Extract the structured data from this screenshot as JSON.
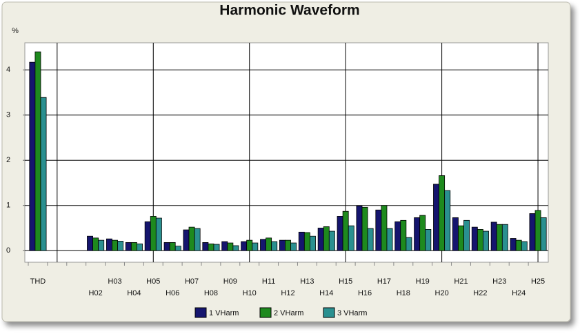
{
  "chart_data": {
    "type": "bar",
    "title": "Harmonic Waveform",
    "y_label": "%",
    "categories": [
      "THD",
      null,
      null,
      "H02",
      "H03",
      "H04",
      "H05",
      "H06",
      "H07",
      "H08",
      "H09",
      "H10",
      "H11",
      "H12",
      "H13",
      "H14",
      "H15",
      "H16",
      "H17",
      "H18",
      "H19",
      "H20",
      "H21",
      "H22",
      "H23",
      "H24",
      "H25"
    ],
    "series": [
      {
        "name": "1 VHarm",
        "color": "#15156e",
        "values": [
          4.17,
          null,
          null,
          0.32,
          0.26,
          0.18,
          0.64,
          0.18,
          0.46,
          0.18,
          0.2,
          0.2,
          0.25,
          0.23,
          0.41,
          0.5,
          0.76,
          0.99,
          0.9,
          0.64,
          0.73,
          1.47,
          0.73,
          0.52,
          0.63,
          0.27,
          0.82
        ]
      },
      {
        "name": "2 VHarm",
        "color": "#1e8a1e",
        "values": [
          4.4,
          null,
          null,
          0.28,
          0.23,
          0.18,
          0.76,
          0.18,
          0.52,
          0.15,
          0.17,
          0.23,
          0.28,
          0.23,
          0.4,
          0.53,
          0.87,
          0.96,
          1.0,
          0.67,
          0.78,
          1.66,
          0.55,
          0.47,
          0.58,
          0.23,
          0.89
        ]
      },
      {
        "name": "3 VHarm",
        "color": "#2a9090",
        "values": [
          3.39,
          null,
          null,
          0.23,
          0.21,
          0.15,
          0.72,
          0.1,
          0.49,
          0.14,
          0.11,
          0.17,
          0.2,
          0.17,
          0.32,
          0.43,
          0.55,
          0.49,
          0.49,
          0.29,
          0.47,
          1.33,
          0.67,
          0.43,
          0.58,
          0.2,
          0.73
        ]
      }
    ],
    "ylim": [
      -0.15,
      4.6
    ],
    "yticks": [
      0,
      1,
      2,
      3,
      4
    ],
    "grid": true,
    "legend": "bottom"
  }
}
